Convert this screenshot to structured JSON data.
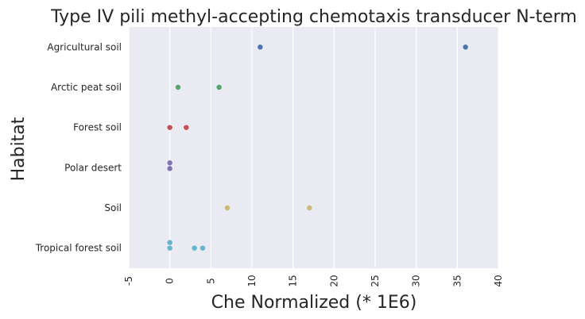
{
  "chart_data": {
    "type": "scatter",
    "title": "Type IV pili methyl-accepting chemotaxis transducer N-term",
    "xlabel": "Che Normalized (* 1E6)",
    "ylabel": "Habitat",
    "xlim": [
      -5,
      40
    ],
    "xticks": [
      "-5",
      "0",
      "5",
      "10",
      "15",
      "20",
      "25",
      "30",
      "35",
      "40"
    ],
    "grid": true,
    "categories": [
      "Agricultural soil",
      "Arctic peat soil",
      "Forest soil",
      "Polar desert",
      "Soil",
      "Tropical forest soil"
    ],
    "series": [
      {
        "category": "Agricultural soil",
        "color": "#4c72b0",
        "points": [
          {
            "x": 11.0,
            "jitter": 0
          },
          {
            "x": 36.0,
            "jitter": 0
          }
        ]
      },
      {
        "category": "Arctic peat soil",
        "color": "#55a868",
        "points": [
          {
            "x": 1.0,
            "jitter": 0
          },
          {
            "x": 6.0,
            "jitter": 0
          }
        ]
      },
      {
        "category": "Forest soil",
        "color": "#c44e52",
        "points": [
          {
            "x": 0.0,
            "jitter": 0
          },
          {
            "x": 2.0,
            "jitter": 0
          }
        ]
      },
      {
        "category": "Polar desert",
        "color": "#8172b2",
        "points": [
          {
            "x": 0.0,
            "jitter": -0.12
          },
          {
            "x": 0.0,
            "jitter": 0.02
          }
        ]
      },
      {
        "category": "Soil",
        "color": "#ccb974",
        "points": [
          {
            "x": 7.0,
            "jitter": 0
          },
          {
            "x": 17.0,
            "jitter": 0
          }
        ]
      },
      {
        "category": "Tropical forest soil",
        "color": "#64b5cd",
        "points": [
          {
            "x": 0.0,
            "jitter": -0.14
          },
          {
            "x": 0.0,
            "jitter": 0.0
          },
          {
            "x": 3.0,
            "jitter": 0.0
          },
          {
            "x": 4.0,
            "jitter": 0.0
          }
        ]
      }
    ]
  }
}
